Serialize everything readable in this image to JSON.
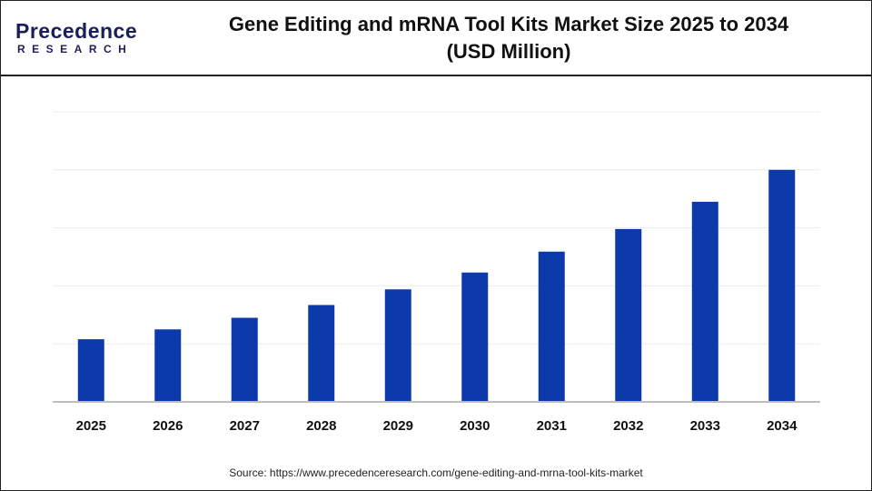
{
  "logo": {
    "line1": "Precedence",
    "line2": "RESEARCH"
  },
  "chart_data": {
    "type": "bar",
    "title": "Gene Editing and mRNA Tool Kits Market  Size 2025 to 2034",
    "subtitle": "(USD Million)",
    "categories": [
      "2025",
      "2026",
      "2027",
      "2028",
      "2029",
      "2030",
      "2031",
      "2032",
      "2033",
      "2034"
    ],
    "values": [
      1.08,
      1.25,
      1.45,
      1.67,
      1.94,
      2.23,
      2.59,
      2.98,
      3.45,
      4.0
    ],
    "ylim": [
      0,
      5
    ],
    "grid": true,
    "bar_color": "#0d3aaa",
    "xlabel": "",
    "ylabel": ""
  },
  "source": "Source: https://www.precedenceresearch.com/gene-editing-and-mrna-tool-kits-market"
}
